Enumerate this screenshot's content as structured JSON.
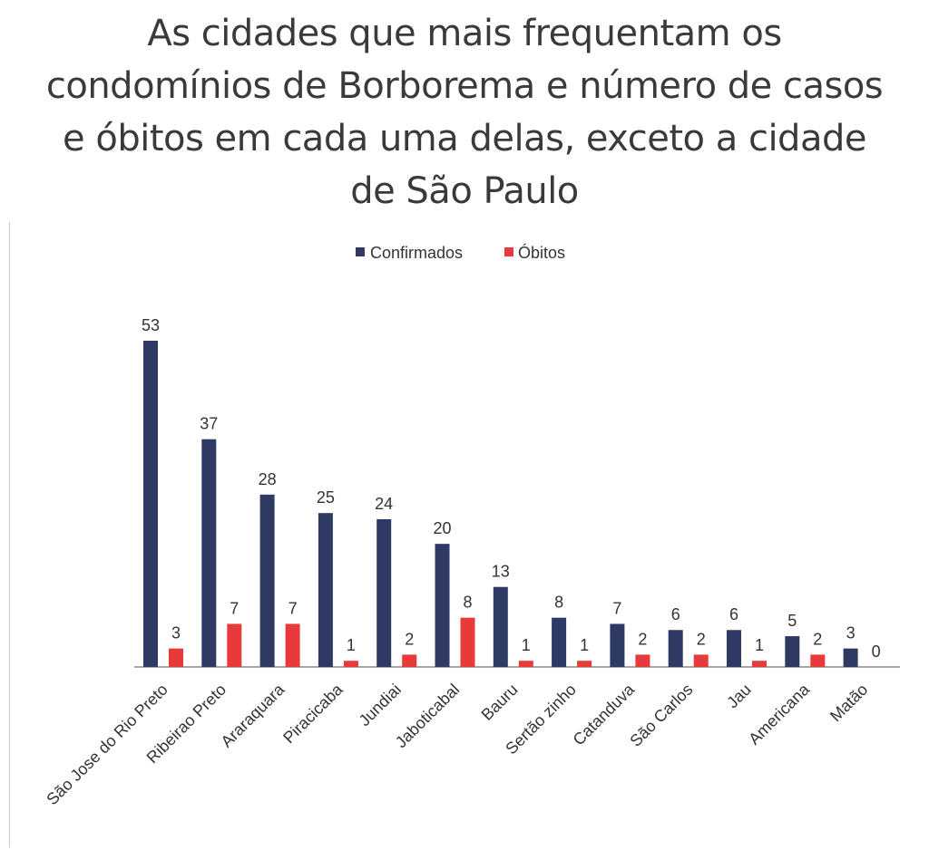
{
  "chart_data": {
    "type": "bar",
    "title": "As cidades que mais frequentam os condomínios de Borborema e número de casos e óbitos em cada uma delas, exceto a cidade de São Paulo",
    "title_lines": [
      "As cidades que mais frequentam os",
      "condomínios de Borborema e número de casos",
      "e óbitos em cada uma delas, exceto a cidade",
      "de São Paulo"
    ],
    "categories": [
      "São Jose do Rio Preto",
      "Ribeirao Preto",
      "Araraquara",
      "Piracicaba",
      "Jundiai",
      "Jaboticabal",
      "Bauru",
      "Sertão zinho",
      "Catanduva",
      "São Carlos",
      "Jau",
      "Americana",
      "Matão"
    ],
    "series": [
      {
        "name": "Confirmados",
        "color": "#2f3a64",
        "values": [
          53,
          37,
          28,
          25,
          24,
          20,
          13,
          8,
          7,
          6,
          6,
          5,
          3
        ]
      },
      {
        "name": "Óbitos",
        "color": "#e8393b",
        "values": [
          3,
          7,
          7,
          1,
          2,
          8,
          1,
          1,
          2,
          2,
          1,
          2,
          0
        ]
      }
    ],
    "xlabel": "",
    "ylabel": "",
    "ylim": [
      0,
      53
    ],
    "legend": "top",
    "grid": false,
    "data_labels": true
  }
}
